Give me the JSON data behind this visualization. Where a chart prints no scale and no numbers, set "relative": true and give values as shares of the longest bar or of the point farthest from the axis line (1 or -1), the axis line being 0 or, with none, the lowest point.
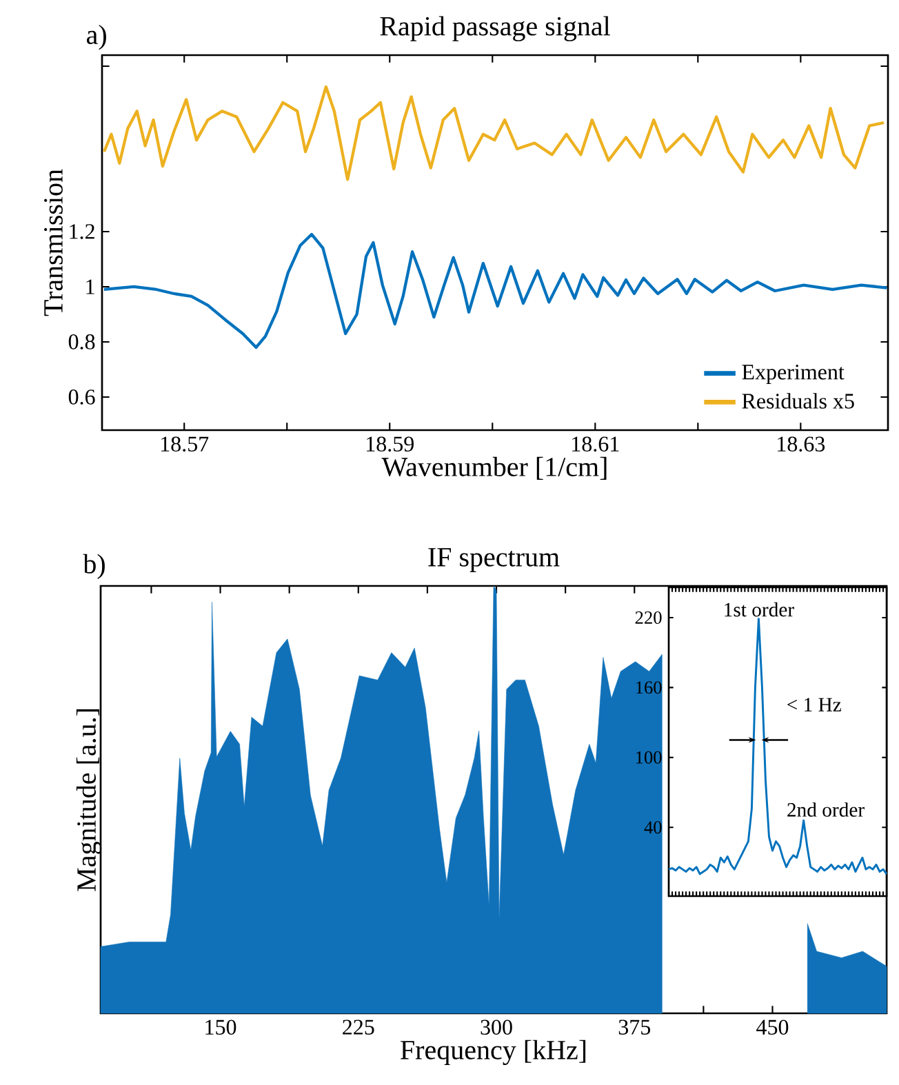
{
  "chart_data": [
    {
      "type": "line",
      "title": "Rapid passage signal",
      "xlabel": "Wavenumber [1/cm]",
      "ylabel": "Transmission",
      "annotations": [
        "a)"
      ],
      "xlim": [
        18.562,
        18.6385
      ],
      "ylim": [
        0.48,
        1.84
      ],
      "xticks": [
        18.57,
        {
          "value": 18.58,
          "label": null
        },
        18.59,
        {
          "value": 18.6,
          "label": null
        },
        18.61,
        {
          "value": 18.62,
          "label": null
        },
        18.63
      ],
      "yticks": [
        0.6,
        0.8,
        1,
        1.2,
        {
          "value": 1.8,
          "label": null
        }
      ],
      "legend": "bottom right",
      "grid": false,
      "series": [
        {
          "name": "Experiment",
          "color": "#0072bd",
          "x": [
            18.5622,
            18.5651,
            18.5673,
            18.569,
            18.5707,
            18.5723,
            18.574,
            18.5757,
            18.577,
            18.5779,
            18.579,
            18.5801,
            18.5813,
            18.5824,
            18.5835,
            18.5846,
            18.5857,
            18.5868,
            18.5877,
            18.5884,
            18.5893,
            18.5905,
            18.5913,
            18.5922,
            18.5932,
            18.5943,
            18.5953,
            18.5962,
            18.5971,
            18.5977,
            18.5991,
            18.6005,
            18.6018,
            18.603,
            18.6044,
            18.6055,
            18.6069,
            18.608,
            18.6088,
            18.6102,
            18.6108,
            18.6122,
            18.613,
            18.6138,
            18.6147,
            18.6161,
            18.618,
            18.6189,
            18.6197,
            18.6214,
            18.6228,
            18.6242,
            18.6258,
            18.6275,
            18.6303,
            18.6331,
            18.6359,
            18.6384
          ],
          "values": [
            0.99,
            1.0,
            0.99,
            0.975,
            0.965,
            0.933,
            0.88,
            0.83,
            0.78,
            0.82,
            0.91,
            1.05,
            1.15,
            1.19,
            1.14,
            0.985,
            0.83,
            0.9,
            1.11,
            1.16,
            1.006,
            0.865,
            0.965,
            1.127,
            1.027,
            0.89,
            1.006,
            1.106,
            1.006,
            0.908,
            1.085,
            0.93,
            1.073,
            0.94,
            1.058,
            0.944,
            1.048,
            0.958,
            1.044,
            0.965,
            1.033,
            0.969,
            1.025,
            0.975,
            1.031,
            0.975,
            1.027,
            0.975,
            1.027,
            0.981,
            1.023,
            0.985,
            1.017,
            0.985,
            1.006,
            0.99,
            1.006,
            0.996
          ]
        },
        {
          "name": "Residuals x5",
          "color": "#edb120",
          "x": [
            18.5622,
            18.5629,
            18.5637,
            18.5645,
            18.5654,
            18.5662,
            18.567,
            18.5679,
            18.569,
            18.5702,
            18.5712,
            18.5723,
            18.5737,
            18.5751,
            18.5768,
            18.5782,
            18.5796,
            18.581,
            18.5818,
            18.5826,
            18.5838,
            18.5846,
            18.5859,
            18.5871,
            18.5882,
            18.5891,
            18.5904,
            18.5913,
            18.5921,
            18.593,
            18.594,
            18.5952,
            18.5963,
            18.5977,
            18.5991,
            18.6002,
            18.6012,
            18.6024,
            18.6041,
            18.6058,
            18.6072,
            18.6086,
            18.6097,
            18.6113,
            18.613,
            18.6144,
            18.6157,
            18.6169,
            18.6186,
            18.6203,
            18.6218,
            18.623,
            18.6244,
            18.6253,
            18.6269,
            18.6283,
            18.6294,
            18.6308,
            18.632,
            18.6329,
            18.6342,
            18.6353,
            18.6367,
            18.6381
          ],
          "values": [
            1.49,
            1.553,
            1.448,
            1.574,
            1.637,
            1.511,
            1.605,
            1.437,
            1.563,
            1.679,
            1.532,
            1.605,
            1.637,
            1.616,
            1.49,
            1.574,
            1.668,
            1.637,
            1.49,
            1.574,
            1.725,
            1.637,
            1.389,
            1.605,
            1.637,
            1.668,
            1.427,
            1.595,
            1.689,
            1.553,
            1.431,
            1.605,
            1.647,
            1.458,
            1.553,
            1.532,
            1.605,
            1.5,
            1.521,
            1.479,
            1.553,
            1.479,
            1.605,
            1.458,
            1.542,
            1.469,
            1.605,
            1.49,
            1.553,
            1.479,
            1.616,
            1.49,
            1.416,
            1.553,
            1.469,
            1.532,
            1.469,
            1.584,
            1.469,
            1.647,
            1.479,
            1.431,
            1.584,
            1.595
          ]
        }
      ]
    },
    {
      "type": "area",
      "title": "IF spectrum",
      "xlabel": "Frequency [kHz]",
      "ylabel": "Magnitude [a.u.]",
      "annotations": [
        "b)"
      ],
      "relative": true,
      "xlim": [
        85,
        512
      ],
      "xticks": [
        {
          "value": 112.5,
          "label": null
        },
        150,
        {
          "value": 187.5,
          "label": null
        },
        225,
        {
          "value": 262.5,
          "label": null
        },
        300,
        {
          "value": 337.5,
          "label": null
        },
        375,
        {
          "value": 412.5,
          "label": null
        },
        450,
        {
          "value": 487.5,
          "label": null
        }
      ],
      "series": [
        {
          "color": "#1071b9",
          "x": [
            85,
            100.5,
            120.5,
            123,
            125.5,
            128,
            130.5,
            134,
            136.5,
            141.5,
            145,
            145.5,
            148,
            155.5,
            160.5,
            163,
            167,
            173,
            180.5,
            186.5,
            193,
            199,
            205.5,
            209,
            215.5,
            225.5,
            235.5,
            243,
            250.5,
            255.5,
            261.5,
            269,
            273,
            278,
            283,
            288,
            290.5,
            293,
            296,
            298.5,
            300,
            301.5,
            305.5,
            310.5,
            315.5,
            323,
            330.5,
            336.5,
            343,
            350.5,
            354,
            358,
            362.5,
            367.5,
            375.5,
            383,
            390,
            405,
            420,
            435,
            450,
            461,
            469,
            474,
            487.5,
            499,
            512
          ],
          "values": [
            0.156,
            0.167,
            0.167,
            0.231,
            0.414,
            0.597,
            0.468,
            0.382,
            0.46,
            0.567,
            0.61,
            0.962,
            0.6,
            0.66,
            0.63,
            0.484,
            0.693,
            0.672,
            0.844,
            0.876,
            0.758,
            0.51,
            0.392,
            0.522,
            0.597,
            0.79,
            0.78,
            0.844,
            0.81,
            0.855,
            0.715,
            0.435,
            0.306,
            0.457,
            0.511,
            0.597,
            0.661,
            0.457,
            0.253,
            1,
            0.99,
            0.22,
            0.758,
            0.78,
            0.78,
            0.672,
            0.489,
            0.371,
            0.522,
            0.63,
            0.586,
            0.833,
            0.737,
            0.8,
            0.823,
            0.8,
            0.84,
            null,
            null,
            null,
            null,
            null,
            0.21,
            0.145,
            0.13,
            0.145,
            0.11
          ]
        }
      ]
    },
    {
      "type": "line",
      "annotations": [
        "1st order",
        "< 1 Hz",
        "2nd order"
      ],
      "tick_labels": "y",
      "categories": [
        null,
        null,
        null,
        null,
        null,
        null,
        null,
        null,
        null,
        null,
        null,
        null,
        null,
        null,
        null,
        null,
        null,
        null,
        null,
        null,
        null,
        null,
        null,
        null,
        null,
        null,
        null,
        null,
        null,
        null,
        null,
        null,
        null,
        null,
        null,
        null,
        null,
        null,
        null,
        null,
        null,
        null,
        null,
        null,
        null,
        null,
        null,
        null,
        null,
        null,
        null,
        null,
        null,
        null,
        null,
        null,
        null,
        null,
        null,
        null,
        null,
        null,
        null,
        null
      ],
      "ylim": [
        -19,
        246
      ],
      "yticks": [
        40,
        100,
        160,
        220
      ],
      "series": [
        {
          "color": "#0072bd",
          "values": [
            4,
            5,
            3,
            6,
            4,
            2,
            5,
            3,
            6,
            0,
            2,
            4,
            8,
            6,
            2,
            14,
            10,
            15,
            8,
            4,
            10,
            16,
            22,
            28,
            56,
            160,
            219,
            160,
            80,
            32,
            20,
            28,
            24,
            14,
            6,
            12,
            16,
            14,
            24,
            46,
            24,
            6,
            4,
            2,
            6,
            3,
            5,
            8,
            4,
            7,
            5,
            8,
            4,
            10,
            2,
            8,
            14,
            4,
            6,
            4,
            8,
            2,
            4,
            0
          ]
        }
      ]
    }
  ]
}
